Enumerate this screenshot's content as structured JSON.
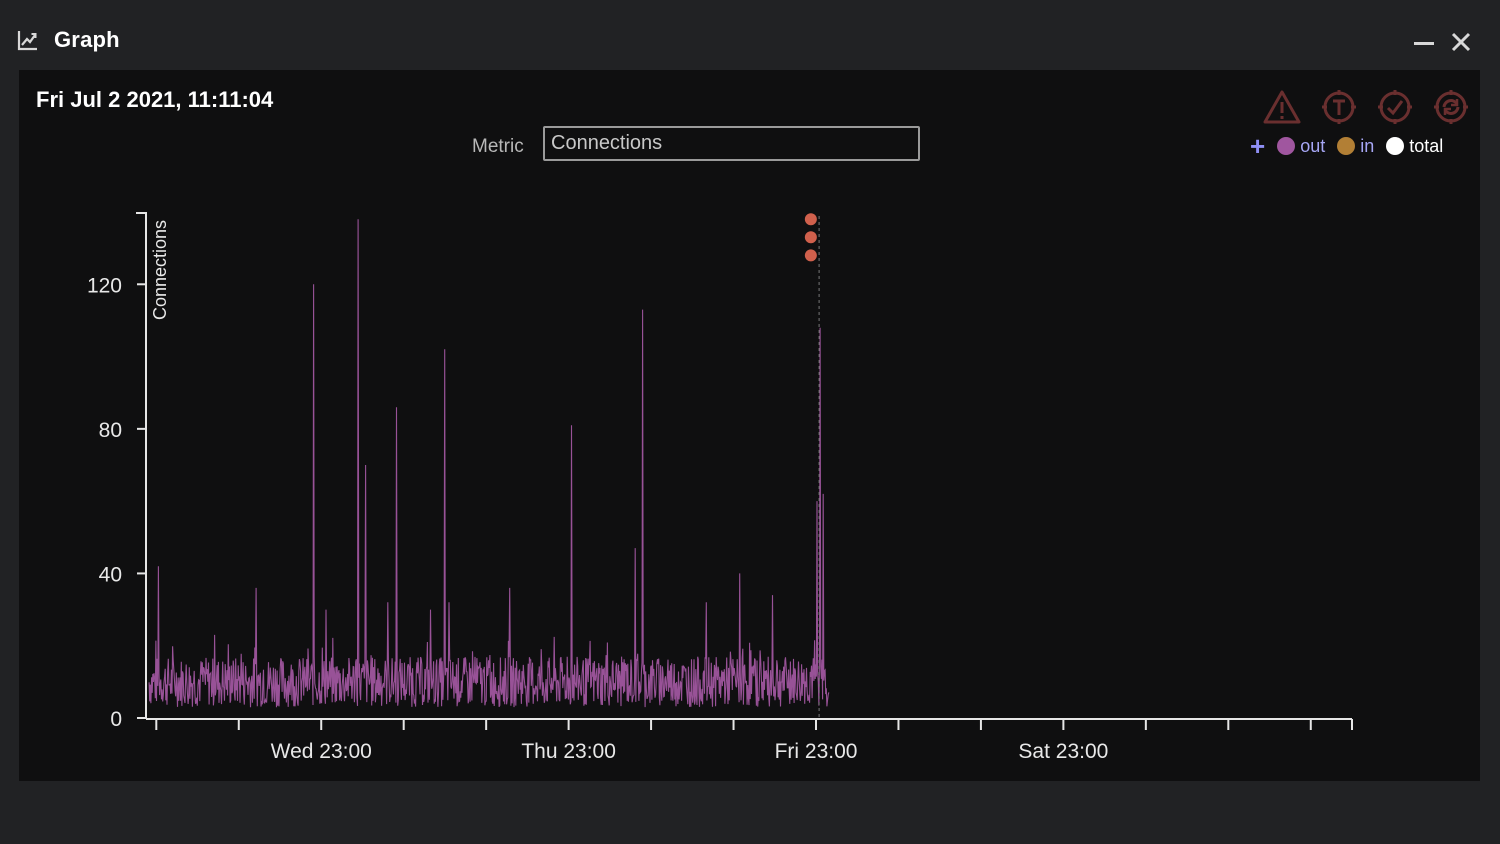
{
  "window": {
    "title": "Graph",
    "icon": "line-chart-icon",
    "controls": [
      "minimize-icon",
      "close-icon"
    ]
  },
  "header": {
    "timestamp": "Fri Jul 2 2021, 11:11:04",
    "metric_label": "Metric",
    "metric_value": "Connections"
  },
  "toolbar": {
    "icons": [
      "warning-icon",
      "thread-icon",
      "check-icon",
      "refresh-icon"
    ]
  },
  "legend": {
    "add_symbol": "+",
    "items": [
      {
        "label": "out",
        "color": "#a0569f"
      },
      {
        "label": "in",
        "color": "#b27f35"
      },
      {
        "label": "total",
        "color": "#ffffff"
      }
    ]
  },
  "chart_data": {
    "type": "line",
    "ylabel": "Connections",
    "yticks": [
      0,
      40,
      80,
      120
    ],
    "ylim": [
      0,
      140
    ],
    "xticks": [
      "Wed 23:00",
      "Thu 23:00",
      "Fri 23:00",
      "Sat 23:00"
    ],
    "xlim_hours": [
      -17,
      100
    ],
    "series": [
      {
        "name": "out",
        "color": "#a0569f",
        "baseline_range": [
          3,
          17
        ],
        "spikes": [
          {
            "t": -15.8,
            "v": 42
          },
          {
            "t": -10.3,
            "v": 23
          },
          {
            "t": -6.3,
            "v": 36
          },
          {
            "t": -0.7,
            "v": 120
          },
          {
            "t": 0.5,
            "v": 30
          },
          {
            "t": 3.6,
            "v": 138
          },
          {
            "t": 4.3,
            "v": 70
          },
          {
            "t": 6.5,
            "v": 32
          },
          {
            "t": 7.3,
            "v": 86
          },
          {
            "t": 10.6,
            "v": 30
          },
          {
            "t": 12.0,
            "v": 102
          },
          {
            "t": 12.4,
            "v": 32
          },
          {
            "t": 18.3,
            "v": 36
          },
          {
            "t": 24.3,
            "v": 81
          },
          {
            "t": 30.5,
            "v": 47
          },
          {
            "t": 31.2,
            "v": 113
          },
          {
            "t": 37.4,
            "v": 32
          },
          {
            "t": 40.6,
            "v": 40
          },
          {
            "t": 43.8,
            "v": 34
          }
        ],
        "end_t": 49.3,
        "end_spikes": [
          {
            "t": 48.4,
            "v": 108
          },
          {
            "t": 48.7,
            "v": 62
          },
          {
            "t": 48.1,
            "v": 60
          }
        ]
      }
    ],
    "markers": {
      "t": 47.5,
      "values": [
        138,
        133,
        128
      ],
      "color": "#d0604c"
    },
    "cursor_t": 48.3
  }
}
